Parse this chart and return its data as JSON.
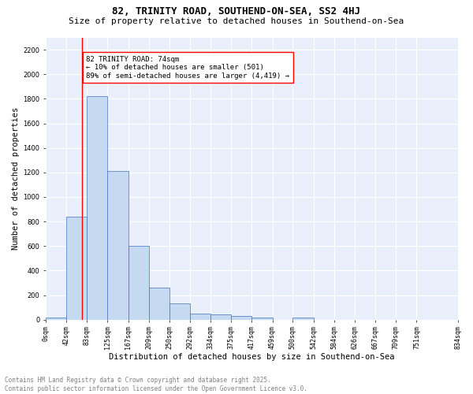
{
  "title1": "82, TRINITY ROAD, SOUTHEND-ON-SEA, SS2 4HJ",
  "title2": "Size of property relative to detached houses in Southend-on-Sea",
  "xlabel": "Distribution of detached houses by size in Southend-on-Sea",
  "ylabel": "Number of detached properties",
  "bar_values": [
    20,
    840,
    1820,
    1210,
    600,
    260,
    130,
    50,
    40,
    30,
    20,
    0,
    20,
    0,
    0,
    0,
    0,
    0,
    0
  ],
  "bin_edges": [
    0,
    42,
    83,
    125,
    167,
    209,
    250,
    292,
    334,
    375,
    417,
    459,
    500,
    542,
    584,
    626,
    667,
    709,
    751,
    834
  ],
  "tick_labels": [
    "0sqm",
    "42sqm",
    "83sqm",
    "125sqm",
    "167sqm",
    "209sqm",
    "250sqm",
    "292sqm",
    "334sqm",
    "375sqm",
    "417sqm",
    "459sqm",
    "500sqm",
    "542sqm",
    "584sqm",
    "626sqm",
    "667sqm",
    "709sqm",
    "751sqm",
    "834sqm"
  ],
  "bar_color": "#c5d9f1",
  "bar_edge_color": "#4472c4",
  "vline_x": 74,
  "vline_color": "red",
  "annotation_text": "82 TRINITY ROAD: 74sqm\n← 10% of detached houses are smaller (501)\n89% of semi-detached houses are larger (4,419) →",
  "annotation_box_color": "white",
  "annotation_box_edge_color": "red",
  "ylim": [
    0,
    2300
  ],
  "yticks": [
    0,
    200,
    400,
    600,
    800,
    1000,
    1200,
    1400,
    1600,
    1800,
    2000,
    2200
  ],
  "background_color": "#eaf0fb",
  "grid_color": "white",
  "footer_text": "Contains HM Land Registry data © Crown copyright and database right 2025.\nContains public sector information licensed under the Open Government Licence v3.0.",
  "title1_fontsize": 9,
  "title2_fontsize": 8,
  "xlabel_fontsize": 7.5,
  "ylabel_fontsize": 7.5,
  "tick_fontsize": 6,
  "annotation_fontsize": 6.5,
  "footer_fontsize": 5.5
}
